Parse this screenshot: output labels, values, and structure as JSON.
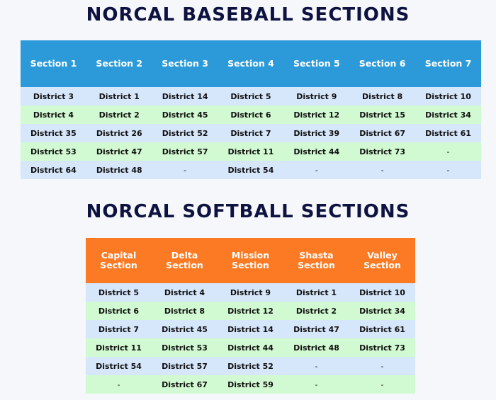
{
  "baseball": {
    "title": "NORCAL BASEBALL SECTIONS",
    "headers": [
      "Section 1",
      "Section 2",
      "Section 3",
      "Section 4",
      "Section 5",
      "Section 6",
      "Section 7"
    ],
    "rows": [
      [
        "District 3",
        "District 1",
        "District 14",
        "District 5",
        "District 9",
        "District 8",
        "District 10"
      ],
      [
        "District 4",
        "District 2",
        "District 45",
        "District 6",
        "District 12",
        "District 15",
        "District 34"
      ],
      [
        "District 35",
        "District 26",
        "District 52",
        "District 7",
        "District 39",
        "District 67",
        "District 61"
      ],
      [
        "District 53",
        "District 47",
        "District 57",
        "District 11",
        "District 44",
        "District 73",
        "-"
      ],
      [
        "District 64",
        "District 48",
        "-",
        "District 54",
        "-",
        "-",
        "-"
      ]
    ],
    "header_color": "#2c9ad9"
  },
  "softball": {
    "title": "NORCAL SOFTBALL SECTIONS",
    "headers": [
      "Capital Section",
      "Delta Section",
      "Mission Section",
      "Shasta Section",
      "Valley Section"
    ],
    "rows": [
      [
        "District 5",
        "District 4",
        "District 9",
        "District 1",
        "District 10"
      ],
      [
        "District 6",
        "District 8",
        "District 12",
        "District 2",
        "District 34"
      ],
      [
        "District 7",
        "District 45",
        "District 14",
        "District 47",
        "District 61"
      ],
      [
        "District 11",
        "District 53",
        "District 44",
        "District 48",
        "District 73"
      ],
      [
        "District 54",
        "District 57",
        "District 52",
        "-",
        "-"
      ],
      [
        "-",
        "District 67",
        "District 59",
        "-",
        "-"
      ]
    ],
    "header_color": "#fb7a23"
  },
  "row_colors": [
    "#d6e6fb",
    "#d2fad2"
  ]
}
